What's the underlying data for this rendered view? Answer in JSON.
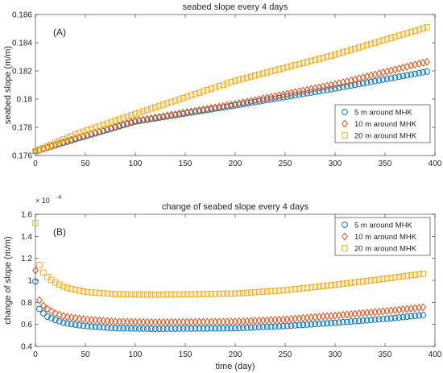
{
  "chart_data": [
    {
      "type": "scatter",
      "panel_label": "(A)",
      "title": "seabed slope every 4 days",
      "xlabel": "",
      "ylabel": "seabed slope (m/m)",
      "xlim": [
        0,
        400
      ],
      "ylim": [
        0.176,
        0.186
      ],
      "xticks": [
        0,
        50,
        100,
        150,
        200,
        250,
        300,
        350,
        400
      ],
      "yticks": [
        0.176,
        0.178,
        0.18,
        0.182,
        0.184,
        0.186
      ],
      "ytick_labels": [
        "0.176",
        "0.178",
        "0.18",
        "0.182",
        "0.184",
        "0.186"
      ],
      "grid": false,
      "legend": "bottom-right",
      "x_spec": {
        "start": 0,
        "step": 4,
        "count": 99
      },
      "series": [
        {
          "name": "5 m around MHK",
          "marker": "circle",
          "color": "#0072BD",
          "x": [
            0,
            40,
            100,
            200,
            300,
            392
          ],
          "y": [
            0.1763,
            0.17715,
            0.1784,
            0.17955,
            0.18075,
            0.18195
          ]
        },
        {
          "name": "10 m around MHK",
          "marker": "diamond",
          "color": "#D95319",
          "x": [
            0,
            40,
            100,
            200,
            300,
            392
          ],
          "y": [
            0.1763,
            0.1772,
            0.17845,
            0.17965,
            0.18105,
            0.18265
          ]
        },
        {
          "name": "20 m around MHK",
          "marker": "square",
          "color": "#EDB120",
          "x": [
            0,
            40,
            100,
            200,
            300,
            392
          ],
          "y": [
            0.1763,
            0.1775,
            0.17895,
            0.1813,
            0.18315,
            0.1851
          ]
        }
      ]
    },
    {
      "type": "scatter",
      "panel_label": "(B)",
      "title": "change of seabed slope every 4 days",
      "xlabel": "time (day)",
      "ylabel": "change of slope (m/m)",
      "exponent_label": "× 10",
      "exponent_power": "-4",
      "xlim": [
        0,
        400
      ],
      "ylim": [
        0.4,
        1.6
      ],
      "xticks": [
        0,
        50,
        100,
        150,
        200,
        250,
        300,
        350,
        400
      ],
      "yticks": [
        0.4,
        0.6,
        0.8,
        1.0,
        1.2,
        1.4,
        1.6
      ],
      "ytick_labels": [
        "0.4",
        "0.6",
        "0.8",
        "1",
        "1.2",
        "1.4",
        "1.6"
      ],
      "grid": false,
      "legend": "top-right",
      "x_spec": {
        "start": 0,
        "step": 4,
        "count": 98
      },
      "series": [
        {
          "name": "5 m around MHK",
          "marker": "circle",
          "color": "#0072BD",
          "x": [
            0,
            4,
            8,
            12,
            20,
            30,
            50,
            80,
            120,
            200,
            250,
            300,
            350,
            388
          ],
          "y": [
            0.99,
            0.74,
            0.7,
            0.67,
            0.64,
            0.61,
            0.585,
            0.565,
            0.56,
            0.565,
            0.585,
            0.615,
            0.65,
            0.685
          ]
        },
        {
          "name": "10 m around MHK",
          "marker": "diamond",
          "color": "#D95319",
          "x": [
            0,
            4,
            8,
            12,
            20,
            30,
            50,
            80,
            120,
            200,
            250,
            300,
            350,
            388
          ],
          "y": [
            1.09,
            0.82,
            0.77,
            0.74,
            0.7,
            0.67,
            0.645,
            0.625,
            0.62,
            0.625,
            0.645,
            0.68,
            0.72,
            0.755
          ]
        },
        {
          "name": "20 m around MHK",
          "marker": "square",
          "color": "#EDB120",
          "x": [
            0,
            4,
            8,
            12,
            20,
            30,
            50,
            80,
            120,
            200,
            250,
            300,
            350,
            388
          ],
          "y": [
            1.52,
            1.14,
            1.07,
            1.03,
            0.98,
            0.935,
            0.895,
            0.875,
            0.87,
            0.88,
            0.91,
            0.96,
            1.015,
            1.06
          ]
        }
      ]
    }
  ]
}
